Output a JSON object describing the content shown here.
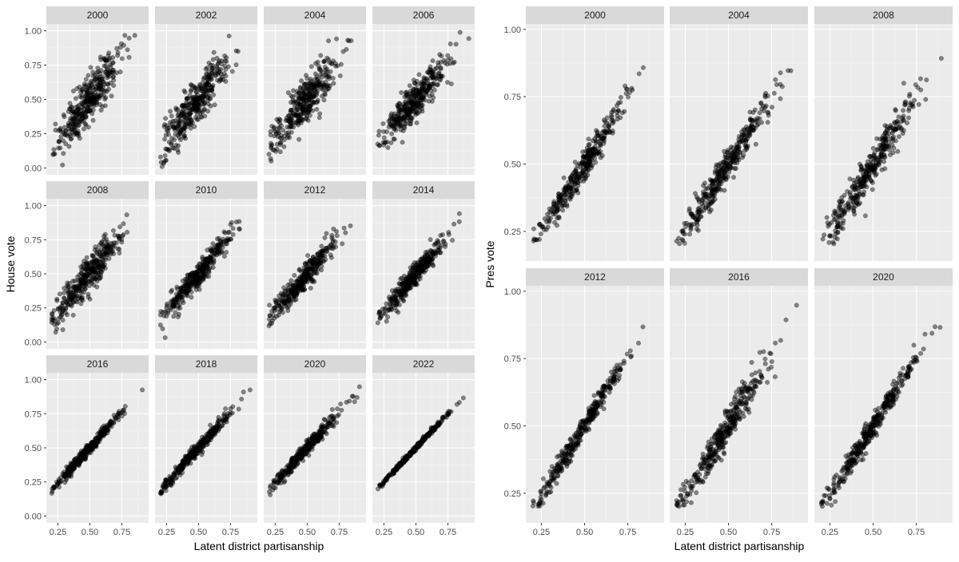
{
  "chart_data": [
    {
      "type": "scatter",
      "xlabel": "Latent district partisanship",
      "ylabel": "House vote",
      "xticks": [
        0.25,
        0.5,
        0.75
      ],
      "yticks": [
        0.0,
        0.25,
        0.5,
        0.75,
        1.0
      ],
      "xlim": [
        0.16,
        0.96
      ],
      "ylim": [
        -0.05,
        1.05
      ],
      "grid": true,
      "panels": [
        {
          "label": "2000",
          "slope": 1.25,
          "noise": 0.085
        },
        {
          "label": "2002",
          "slope": 1.2,
          "noise": 0.08
        },
        {
          "label": "2004",
          "slope": 1.18,
          "noise": 0.08
        },
        {
          "label": "2006",
          "slope": 1.1,
          "noise": 0.07
        },
        {
          "label": "2008",
          "slope": 1.15,
          "noise": 0.065
        },
        {
          "label": "2010",
          "slope": 1.1,
          "noise": 0.045
        },
        {
          "label": "2012",
          "slope": 1.08,
          "noise": 0.045
        },
        {
          "label": "2014",
          "slope": 1.1,
          "noise": 0.04
        },
        {
          "label": "2016",
          "slope": 1.05,
          "noise": 0.02
        },
        {
          "label": "2018",
          "slope": 1.04,
          "noise": 0.022
        },
        {
          "label": "2020",
          "slope": 1.03,
          "noise": 0.025
        },
        {
          "label": "2022",
          "slope": 1.0,
          "noise": 0.008
        }
      ]
    },
    {
      "type": "scatter",
      "xlabel": "Latent district partisanship",
      "ylabel": "Pres vote",
      "xticks": [
        0.25,
        0.5,
        0.75
      ],
      "yticks": [
        0.25,
        0.5,
        0.75,
        1.0
      ],
      "xlim": [
        0.16,
        0.96
      ],
      "ylim": [
        0.14,
        1.02
      ],
      "grid": true,
      "panels": [
        {
          "label": "2000",
          "slope": 1.0,
          "noise": 0.028
        },
        {
          "label": "2004",
          "slope": 1.0,
          "noise": 0.03
        },
        {
          "label": "2008",
          "slope": 1.0,
          "noise": 0.035
        },
        {
          "label": "2012",
          "slope": 1.05,
          "noise": 0.02
        },
        {
          "label": "2016",
          "slope": 1.05,
          "noise": 0.032
        },
        {
          "label": "2020",
          "slope": 1.03,
          "noise": 0.022
        }
      ]
    }
  ]
}
